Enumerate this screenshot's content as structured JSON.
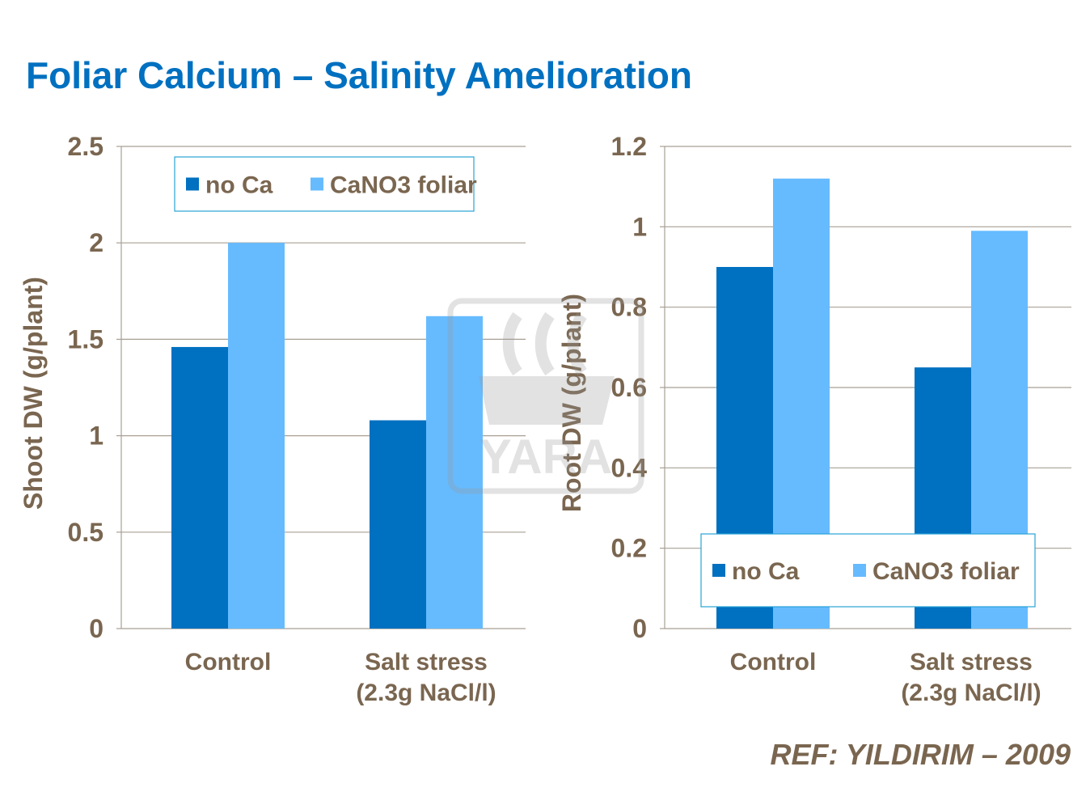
{
  "title": "Foliar Calcium – Salinity Amelioration",
  "reference": "REF: YILDIRIM – 2009",
  "watermark": "YARA",
  "colors": {
    "no_ca": "#0070c0",
    "cano3": "#66bbff",
    "text": "#7a6650",
    "title": "#0070c0",
    "grid": "#a89f94"
  },
  "chart_data": [
    {
      "type": "bar",
      "categories": [
        [
          "Control"
        ],
        [
          "Salt stress",
          "(2.3g NaCl/l)"
        ]
      ],
      "series": [
        {
          "name": "no Ca",
          "values": [
            1.46,
            1.08
          ]
        },
        {
          "name": "CaNO3 foliar",
          "values": [
            2.0,
            1.62
          ]
        }
      ],
      "ylabel": "Shoot DW (g/plant)",
      "ylim": [
        0,
        2.5
      ],
      "yticks": [
        "0",
        "0.5",
        "1",
        "1.5",
        "2",
        "2.5"
      ],
      "grid": true,
      "legend": "top"
    },
    {
      "type": "bar",
      "categories": [
        [
          "Control"
        ],
        [
          "Salt stress",
          "(2.3g NaCl/l)"
        ]
      ],
      "series": [
        {
          "name": "no Ca",
          "values": [
            0.9,
            0.65
          ]
        },
        {
          "name": "CaNO3 foliar",
          "values": [
            1.12,
            0.99
          ]
        }
      ],
      "ylabel": "Root DW (g/plant)",
      "ylim": [
        0,
        1.2
      ],
      "yticks": [
        "0",
        "0.2",
        "0.4",
        "0.6",
        "0.8",
        "1",
        "1.2"
      ],
      "grid": true,
      "legend": "bottom"
    }
  ]
}
